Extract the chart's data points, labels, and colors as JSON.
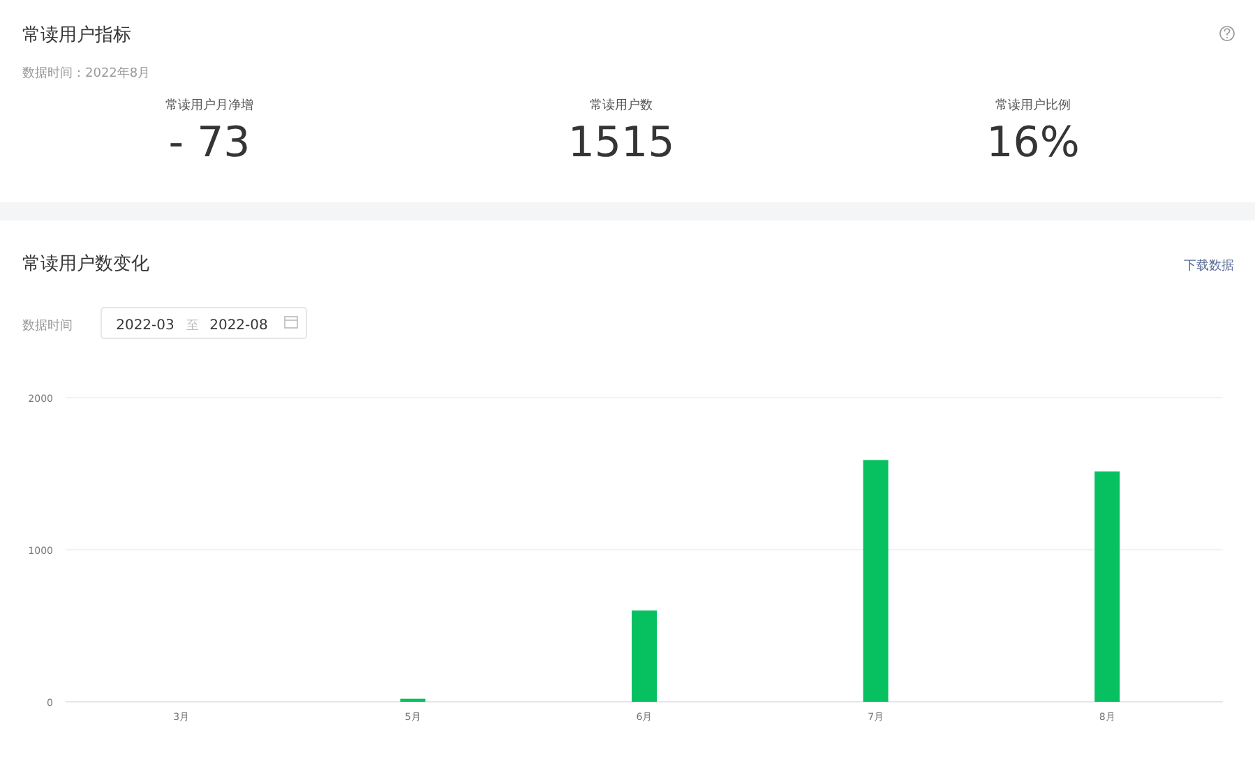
{
  "chart_data": [
    {
      "type": "other",
      "title": "常读用户指标",
      "subtitle": "数据时间：2022年8月",
      "categories": [
        "常读用户月净增",
        "常读用户数",
        "常读用户比例"
      ],
      "values": [
        -73,
        1515,
        16
      ],
      "value_labels": [
        "- 73",
        "1515",
        "16%"
      ]
    },
    {
      "type": "bar",
      "title": "常读用户数变化",
      "categories": [
        "3月",
        "5月",
        "6月",
        "7月",
        "8月"
      ],
      "values": [
        0,
        20,
        600,
        1590,
        1515
      ],
      "color": "#07c160",
      "ylim": [
        0,
        2000
      ],
      "yticks": [
        0,
        1000,
        2000
      ],
      "grid": "y",
      "annotations": [
        "数据时间",
        "2022-03",
        "至",
        "2022-08",
        "下载数据"
      ]
    }
  ]
}
